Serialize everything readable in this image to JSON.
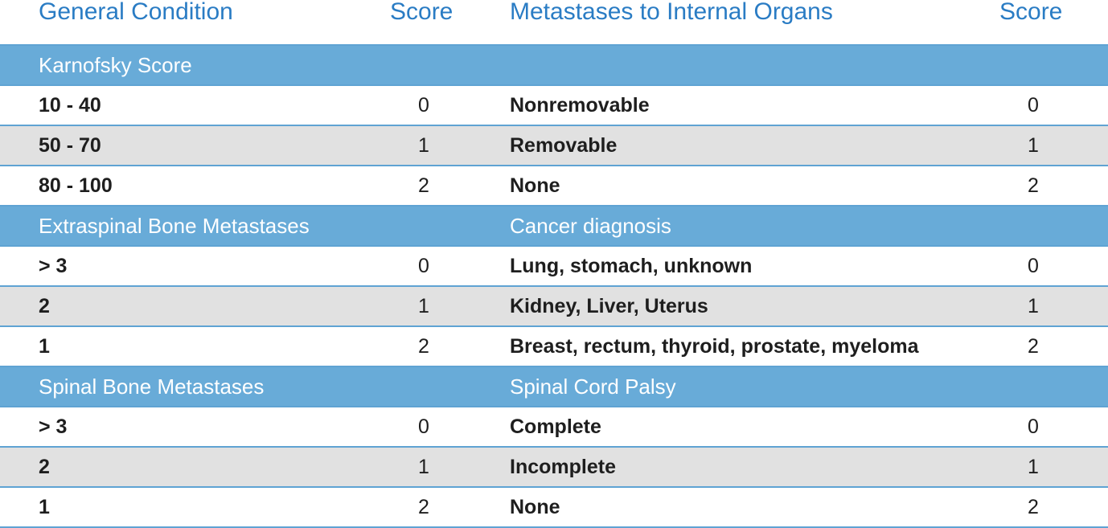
{
  "header": {
    "col1": "General Condition",
    "score1": "Score",
    "col2": "Metastases to Internal Organs",
    "score2": "Score"
  },
  "sections": [
    {
      "left": "Karnofsky Score",
      "rows": [
        {
          "left": "10 - 40",
          "left_score": 0,
          "right": "Nonremovable",
          "right_score": 0
        },
        {
          "left": "50 - 70",
          "left_score": 1,
          "right": "Removable",
          "right_score": 1
        },
        {
          "left": "80 - 100",
          "left_score": 2,
          "right": "None",
          "right_score": 2
        }
      ]
    },
    {
      "left": "Extraspinal Bone Metastases",
      "right": "Cancer diagnosis",
      "rows": [
        {
          "left": "> 3",
          "left_score": 0,
          "right": "Lung, stomach, unknown",
          "right_score": 0
        },
        {
          "left": "2",
          "left_score": 1,
          "right": "Kidney, Liver, Uterus",
          "right_score": 1
        },
        {
          "left": "1",
          "left_score": 2,
          "right": "Breast, rectum, thyroid, prostate, myeloma",
          "right_score": 2
        }
      ]
    },
    {
      "left": "Spinal Bone Metastases",
      "right": "Spinal Cord Palsy",
      "rows": [
        {
          "left": "> 3",
          "left_score": 0,
          "right": "Complete",
          "right_score": 0
        },
        {
          "left": "2",
          "left_score": 1,
          "right": "Incomplete",
          "right_score": 1
        },
        {
          "left": "1",
          "left_score": 2,
          "right": "None",
          "right_score": 2
        }
      ]
    }
  ]
}
